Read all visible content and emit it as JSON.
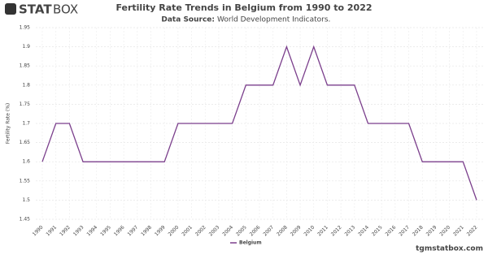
{
  "header": {
    "logo_bold": "STAT",
    "logo_light": "BOX",
    "source_label": "Data Source:",
    "source": "World Development Indicators."
  },
  "footer": {
    "site": "tgmstatbox.com"
  },
  "chart_data": {
    "type": "line",
    "title": "Fertility Rate Trends in Belgium from 1990 to 2022",
    "y_label": "Fertility Rate (%)",
    "categories": [
      "1990",
      "1991",
      "1992",
      "1993",
      "1994",
      "1995",
      "1996",
      "1997",
      "1998",
      "1999",
      "2000",
      "2001",
      "2002",
      "2003",
      "2004",
      "2005",
      "2006",
      "2007",
      "2008",
      "2009",
      "2010",
      "2011",
      "2012",
      "2013",
      "2014",
      "2015",
      "2016",
      "2017",
      "2018",
      "2019",
      "2020",
      "2021",
      "2022"
    ],
    "series": [
      {
        "name": "Belgium",
        "color": "#7b3f8c",
        "values": [
          1.6,
          1.7,
          1.7,
          1.6,
          1.6,
          1.6,
          1.6,
          1.6,
          1.6,
          1.6,
          1.7,
          1.7,
          1.7,
          1.7,
          1.7,
          1.8,
          1.8,
          1.8,
          1.9,
          1.8,
          1.9,
          1.8,
          1.8,
          1.8,
          1.7,
          1.7,
          1.7,
          1.7,
          1.6,
          1.6,
          1.6,
          1.6,
          1.5
        ]
      }
    ],
    "ylim": [
      1.45,
      1.95
    ],
    "yticks": [
      1.45,
      1.5,
      1.55,
      1.6,
      1.65,
      1.7,
      1.75,
      1.8,
      1.85,
      1.9,
      1.95
    ],
    "grid": true
  }
}
